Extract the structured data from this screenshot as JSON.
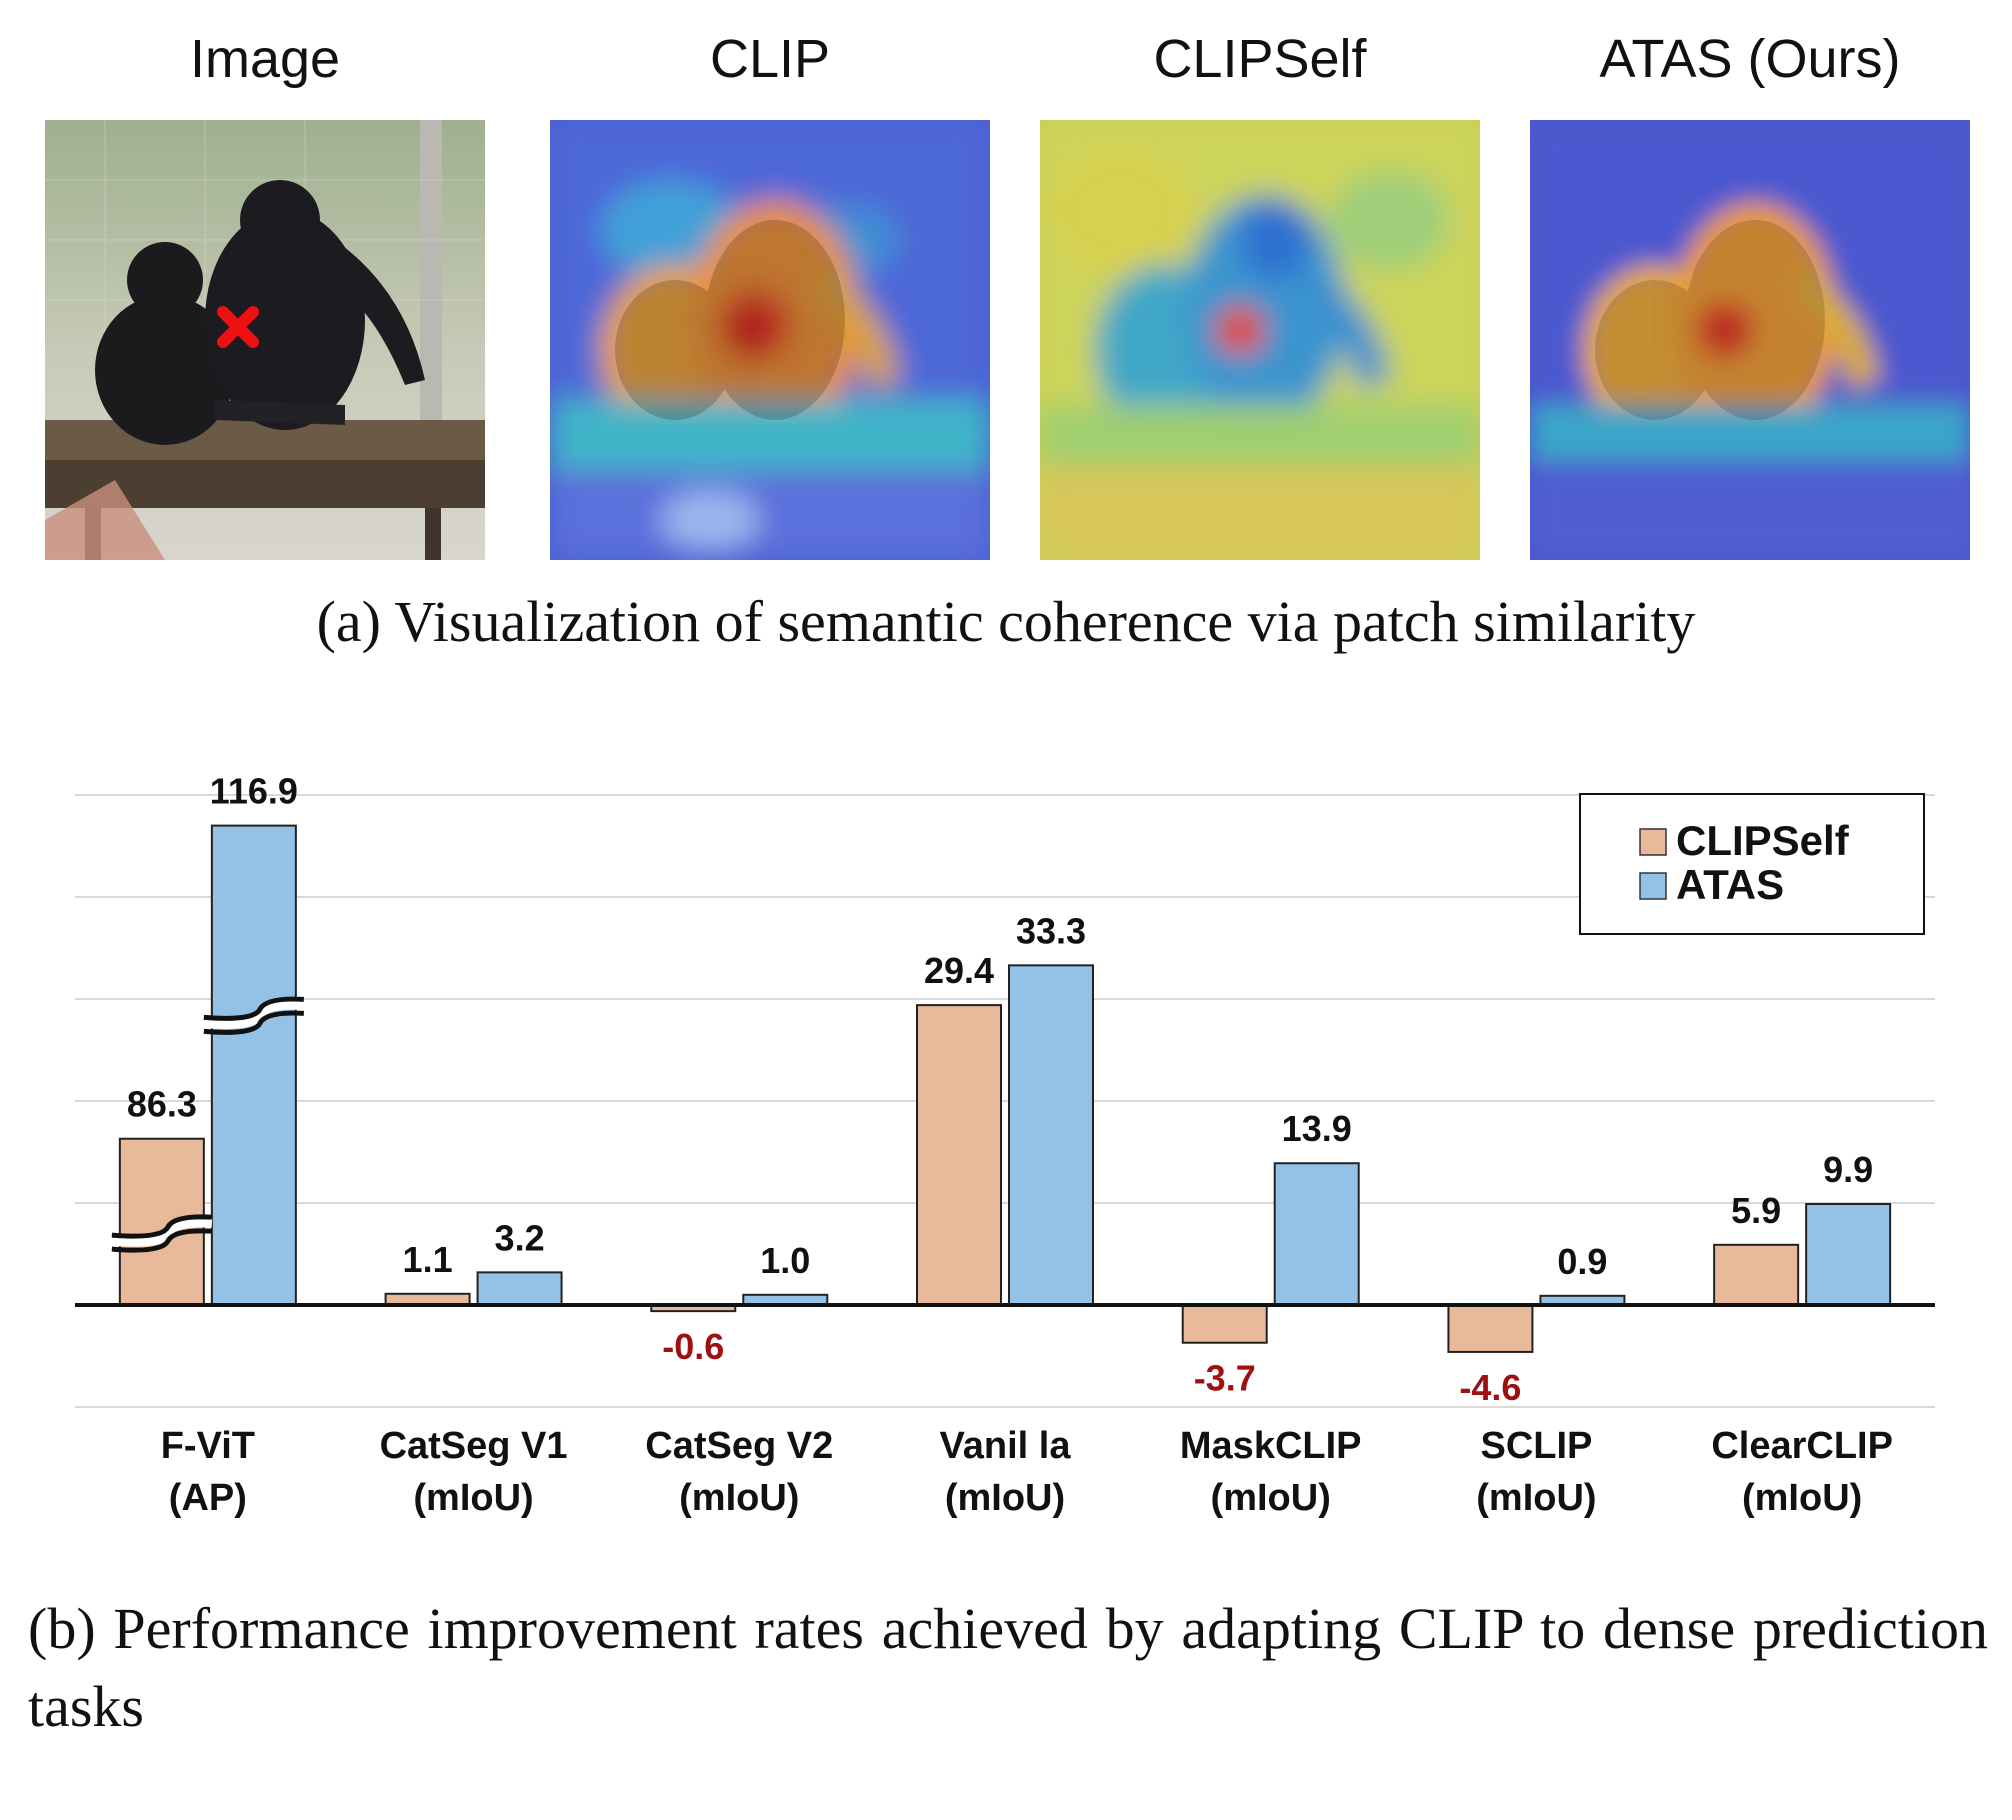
{
  "panel_a": {
    "titles": [
      "Image",
      "CLIP",
      "CLIPSelf",
      "ATAS (Ours)"
    ],
    "caption": "(a) Visualization of semantic coherence via patch similarity",
    "marker_icon": "red-x-marker-icon"
  },
  "panel_b": {
    "caption": "(b) Performance improvement rates achieved by adapting CLIP to dense prediction tasks"
  },
  "chart_data": {
    "type": "bar",
    "categories": [
      [
        "F-ViT",
        "(AP)"
      ],
      [
        "CatSeg V1",
        "(mIoU)"
      ],
      [
        "CatSeg V2",
        "(mIoU)"
      ],
      [
        "Vanil la",
        "(mIoU)"
      ],
      [
        "MaskCLIP",
        "(mIoU)"
      ],
      [
        "SCLIP",
        "(mIoU)"
      ],
      [
        "ClearCLIP",
        "(mIoU)"
      ]
    ],
    "series": [
      {
        "name": "CLIPSelf",
        "color": "#e8b99a",
        "values": [
          86.3,
          1.1,
          -0.6,
          29.4,
          -3.7,
          -4.6,
          5.9
        ],
        "labels": [
          "86.3",
          "1.1",
          "-0.6",
          "29.4",
          "-3.7",
          "-4.6",
          "5.9"
        ]
      },
      {
        "name": "ATAS",
        "color": "#94c2e6",
        "values": [
          116.9,
          3.2,
          1.0,
          33.3,
          13.9,
          0.9,
          9.9
        ],
        "labels": [
          "116.9",
          "3.2",
          "1.0",
          "33.3",
          "13.9",
          "0.9",
          "9.9"
        ]
      }
    ],
    "negative_label_color": "#a01010",
    "axis_break": {
      "category": "F-ViT",
      "display_values": {
        "CLIPSelf": 16.3,
        "ATAS": 47.0
      }
    },
    "ylim": [
      -10,
      50
    ],
    "grid": true,
    "legend": "top-right",
    "xlabel": "",
    "ylabel": ""
  }
}
